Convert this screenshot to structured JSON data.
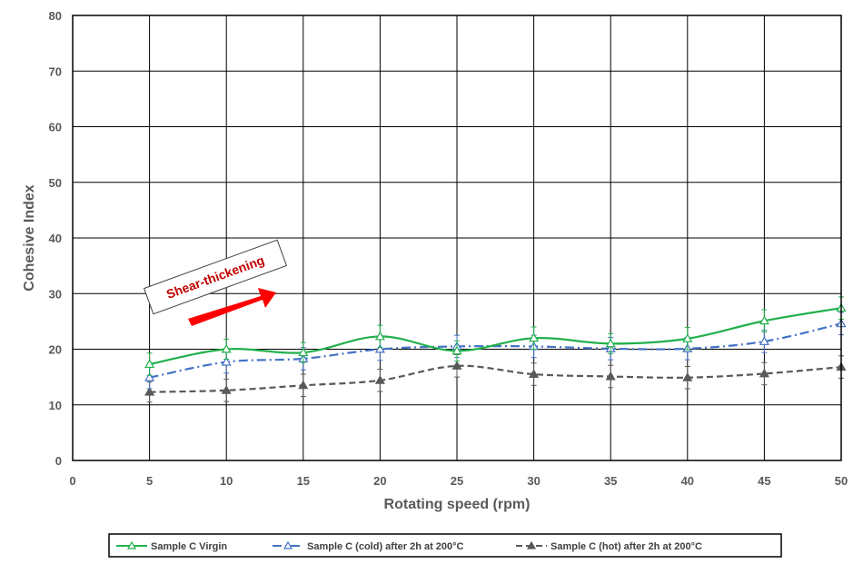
{
  "chart_data": {
    "type": "line",
    "xlabel": "Rotating speed (rpm)",
    "ylabel": "Cohesive Index",
    "xlim": [
      0,
      50
    ],
    "ylim": [
      0,
      80
    ],
    "xticks": [
      0,
      5,
      10,
      15,
      20,
      25,
      30,
      35,
      40,
      45,
      50
    ],
    "yticks": [
      0,
      10,
      20,
      30,
      40,
      50,
      60,
      70,
      80
    ],
    "grid": true,
    "legend_position": "bottom",
    "series": [
      {
        "name": "Sample C Virgin",
        "color": "#22b14c",
        "dash": "solid",
        "marker": "triangle-open",
        "x": [
          5,
          10,
          15,
          20,
          25,
          30,
          35,
          40,
          45,
          50
        ],
        "y": [
          17.3,
          20.0,
          19.4,
          22.3,
          19.7,
          22.0,
          21.0,
          21.9,
          25.1,
          27.4
        ],
        "error": [
          2.0,
          1.8,
          1.8,
          2.0,
          1.8,
          2.0,
          1.8,
          2.0,
          2.0,
          2.0
        ]
      },
      {
        "name": "Sample C (cold) after 2h at 200°C",
        "color": "#4472c4",
        "dash": "dash-dot",
        "marker": "triangle-open",
        "x": [
          5,
          10,
          15,
          20,
          25,
          30,
          35,
          40,
          45,
          50
        ],
        "y": [
          14.9,
          17.7,
          18.3,
          20.0,
          20.5,
          20.5,
          20.1,
          20.1,
          21.4,
          24.6
        ],
        "error": [
          2.0,
          2.0,
          2.0,
          2.0,
          2.0,
          2.0,
          2.0,
          2.0,
          2.0,
          2.0
        ]
      },
      {
        "name": "Sample C (hot) after 2h at 200°C",
        "color": "#595959",
        "dash": "dashed",
        "marker": "triangle-filled",
        "x": [
          5,
          10,
          15,
          20,
          25,
          30,
          35,
          40,
          45,
          50
        ],
        "y": [
          12.3,
          12.6,
          13.5,
          14.4,
          17.0,
          15.5,
          15.1,
          14.9,
          15.6,
          16.8
        ],
        "error": [
          1.8,
          2.0,
          2.0,
          2.0,
          2.0,
          2.0,
          2.0,
          2.0,
          2.0,
          2.0
        ]
      }
    ],
    "annotation": {
      "text": "Shear-thickening",
      "arrow_color": "#ff0000"
    }
  }
}
